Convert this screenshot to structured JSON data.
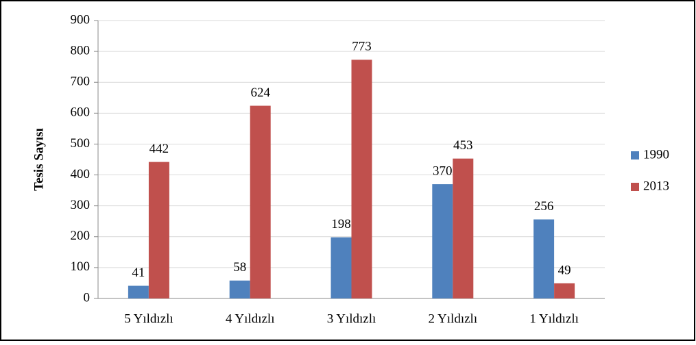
{
  "chart_data": {
    "type": "bar",
    "ylabel": "Tesis Sayısı",
    "categories": [
      "5 Yıldızlı",
      "4 Yıldızlı",
      "3 Yıldızlı",
      "2 Yıldızlı",
      "1 Yıldızlı"
    ],
    "series": [
      {
        "name": "1990",
        "color": "#4f81bd",
        "values": [
          41,
          58,
          198,
          370,
          256
        ]
      },
      {
        "name": "2013",
        "color": "#c0504d",
        "values": [
          442,
          624,
          773,
          453,
          49
        ]
      }
    ],
    "ylim": [
      0,
      900
    ],
    "yticks": [
      0,
      100,
      200,
      300,
      400,
      500,
      600,
      700,
      800,
      900
    ],
    "grid": true,
    "legend": "right"
  }
}
